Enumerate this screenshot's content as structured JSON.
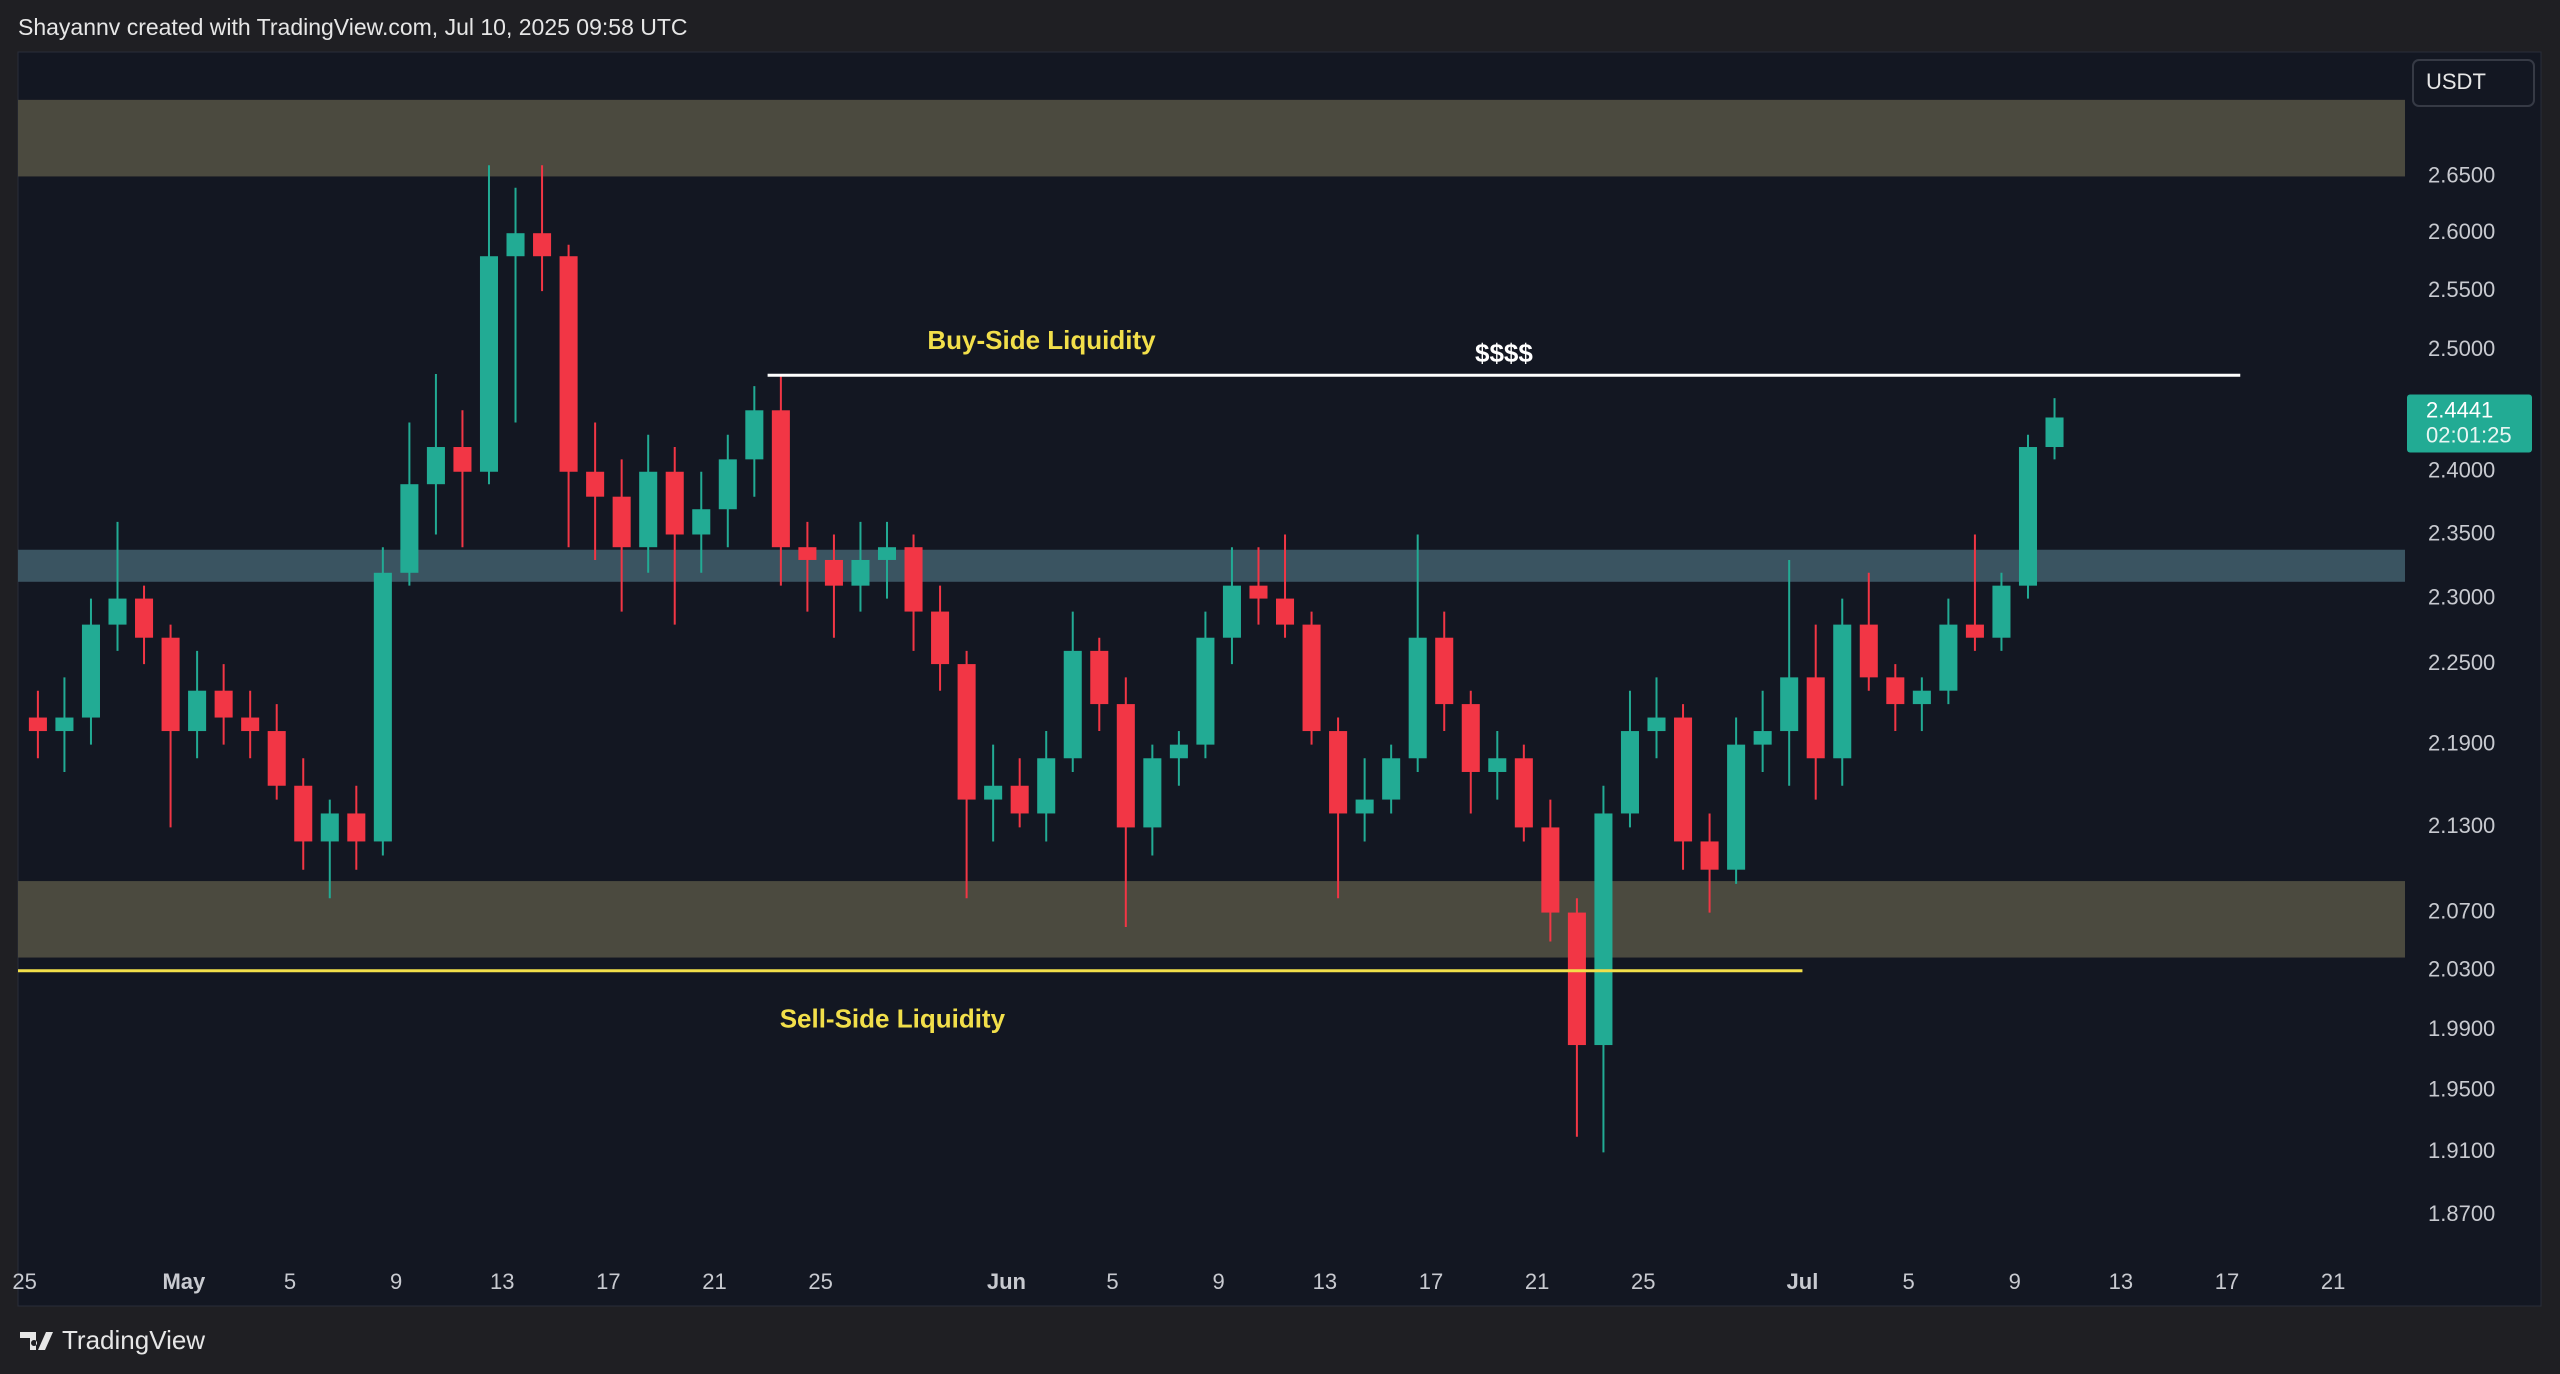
{
  "header": "Shayannv created with TradingView.com, Jul 10, 2025 09:58 UTC",
  "footer": "TradingView",
  "chart_data": {
    "type": "candlestick",
    "currency": "USDT",
    "log_scale": true,
    "grid": false,
    "up_color": "#22ab94",
    "down_color": "#f23645",
    "x": [
      "2025-04-25",
      "2025-04-26",
      "2025-04-27",
      "2025-04-28",
      "2025-04-29",
      "2025-04-30",
      "2025-05-01",
      "2025-05-02",
      "2025-05-03",
      "2025-05-04",
      "2025-05-05",
      "2025-05-06",
      "2025-05-07",
      "2025-05-08",
      "2025-05-09",
      "2025-05-10",
      "2025-05-11",
      "2025-05-12",
      "2025-05-13",
      "2025-05-14",
      "2025-05-15",
      "2025-05-16",
      "2025-05-17",
      "2025-05-18",
      "2025-05-19",
      "2025-05-20",
      "2025-05-21",
      "2025-05-22",
      "2025-05-23",
      "2025-05-24",
      "2025-05-25",
      "2025-05-26",
      "2025-05-27",
      "2025-05-28",
      "2025-05-29",
      "2025-05-30",
      "2025-05-31",
      "2025-06-01",
      "2025-06-02",
      "2025-06-03",
      "2025-06-04",
      "2025-06-05",
      "2025-06-06",
      "2025-06-07",
      "2025-06-08",
      "2025-06-09",
      "2025-06-10",
      "2025-06-11",
      "2025-06-12",
      "2025-06-13",
      "2025-06-14",
      "2025-06-15",
      "2025-06-16",
      "2025-06-17",
      "2025-06-18",
      "2025-06-19",
      "2025-06-20",
      "2025-06-21",
      "2025-06-22",
      "2025-06-23",
      "2025-06-24",
      "2025-06-25",
      "2025-06-26",
      "2025-06-27",
      "2025-06-28",
      "2025-06-29",
      "2025-06-30",
      "2025-07-01",
      "2025-07-02",
      "2025-07-03",
      "2025-07-04",
      "2025-07-05",
      "2025-07-06",
      "2025-07-07",
      "2025-07-08",
      "2025-07-09",
      "2025-07-10"
    ],
    "open": [
      2.21,
      2.2,
      2.21,
      2.28,
      2.3,
      2.27,
      2.2,
      2.23,
      2.21,
      2.2,
      2.16,
      2.12,
      2.14,
      2.12,
      2.32,
      2.39,
      2.42,
      2.4,
      2.58,
      2.6,
      2.58,
      2.4,
      2.38,
      2.34,
      2.4,
      2.35,
      2.37,
      2.41,
      2.45,
      2.34,
      2.33,
      2.31,
      2.33,
      2.34,
      2.29,
      2.25,
      2.15,
      2.16,
      2.14,
      2.18,
      2.26,
      2.22,
      2.13,
      2.18,
      2.19,
      2.27,
      2.31,
      2.3,
      2.28,
      2.2,
      2.14,
      2.15,
      2.18,
      2.27,
      2.22,
      2.17,
      2.18,
      2.13,
      2.07,
      1.98,
      2.14,
      2.2,
      2.21,
      2.12,
      2.1,
      2.19,
      2.2,
      2.24,
      2.18,
      2.28,
      2.24,
      2.22,
      2.23,
      2.28,
      2.27,
      2.31,
      2.42
    ],
    "high": [
      2.23,
      2.24,
      2.3,
      2.36,
      2.31,
      2.28,
      2.26,
      2.25,
      2.23,
      2.22,
      2.18,
      2.15,
      2.16,
      2.34,
      2.44,
      2.48,
      2.45,
      2.66,
      2.64,
      2.66,
      2.59,
      2.44,
      2.41,
      2.43,
      2.42,
      2.4,
      2.43,
      2.47,
      2.48,
      2.36,
      2.35,
      2.36,
      2.36,
      2.35,
      2.31,
      2.26,
      2.19,
      2.18,
      2.2,
      2.29,
      2.27,
      2.24,
      2.19,
      2.2,
      2.29,
      2.34,
      2.34,
      2.35,
      2.29,
      2.21,
      2.18,
      2.19,
      2.35,
      2.29,
      2.23,
      2.2,
      2.19,
      2.15,
      2.08,
      2.16,
      2.23,
      2.24,
      2.22,
      2.14,
      2.21,
      2.23,
      2.33,
      2.28,
      2.3,
      2.32,
      2.25,
      2.24,
      2.3,
      2.35,
      2.32,
      2.43,
      2.46
    ],
    "low": [
      2.18,
      2.17,
      2.19,
      2.26,
      2.25,
      2.13,
      2.18,
      2.19,
      2.18,
      2.15,
      2.1,
      2.08,
      2.1,
      2.11,
      2.31,
      2.35,
      2.34,
      2.39,
      2.44,
      2.55,
      2.34,
      2.33,
      2.29,
      2.32,
      2.28,
      2.32,
      2.34,
      2.38,
      2.31,
      2.29,
      2.27,
      2.29,
      2.3,
      2.26,
      2.23,
      2.08,
      2.12,
      2.13,
      2.12,
      2.17,
      2.2,
      2.06,
      2.11,
      2.16,
      2.18,
      2.25,
      2.28,
      2.27,
      2.19,
      2.08,
      2.12,
      2.14,
      2.17,
      2.2,
      2.14,
      2.15,
      2.12,
      2.05,
      1.92,
      1.91,
      2.13,
      2.18,
      2.1,
      2.07,
      2.09,
      2.17,
      2.16,
      2.15,
      2.16,
      2.23,
      2.2,
      2.2,
      2.22,
      2.26,
      2.26,
      2.3,
      2.41
    ],
    "close": [
      2.2,
      2.21,
      2.28,
      2.3,
      2.27,
      2.2,
      2.23,
      2.21,
      2.2,
      2.16,
      2.12,
      2.14,
      2.12,
      2.32,
      2.39,
      2.42,
      2.4,
      2.58,
      2.6,
      2.58,
      2.4,
      2.38,
      2.34,
      2.4,
      2.35,
      2.37,
      2.41,
      2.45,
      2.34,
      2.33,
      2.31,
      2.33,
      2.34,
      2.29,
      2.25,
      2.15,
      2.16,
      2.14,
      2.18,
      2.26,
      2.22,
      2.13,
      2.18,
      2.19,
      2.27,
      2.31,
      2.3,
      2.28,
      2.2,
      2.14,
      2.15,
      2.18,
      2.27,
      2.22,
      2.17,
      2.18,
      2.13,
      2.07,
      1.98,
      2.14,
      2.2,
      2.21,
      2.12,
      2.1,
      2.19,
      2.2,
      2.24,
      2.18,
      2.28,
      2.24,
      2.22,
      2.23,
      2.28,
      2.27,
      2.31,
      2.42,
      2.4441
    ],
    "last_price": 2.4441,
    "last_price_color": "#22ab94",
    "countdown": "02:01:25",
    "xlim": [
      "2025-04-24T18:00",
      "2025-07-23T17:00"
    ],
    "xticks": [
      {
        "value": "2025-04-25",
        "label": "25"
      },
      {
        "value": "2025-05-01",
        "label": "May"
      },
      {
        "value": "2025-05-05",
        "label": "5"
      },
      {
        "value": "2025-05-09",
        "label": "9"
      },
      {
        "value": "2025-05-13",
        "label": "13"
      },
      {
        "value": "2025-05-17",
        "label": "17"
      },
      {
        "value": "2025-05-21",
        "label": "21"
      },
      {
        "value": "2025-05-25",
        "label": "25"
      },
      {
        "value": "2025-06-01",
        "label": "Jun"
      },
      {
        "value": "2025-06-05",
        "label": "5"
      },
      {
        "value": "2025-06-09",
        "label": "9"
      },
      {
        "value": "2025-06-13",
        "label": "13"
      },
      {
        "value": "2025-06-17",
        "label": "17"
      },
      {
        "value": "2025-06-21",
        "label": "21"
      },
      {
        "value": "2025-06-25",
        "label": "25"
      },
      {
        "value": "2025-07-01",
        "label": "Jul"
      },
      {
        "value": "2025-07-05",
        "label": "5"
      },
      {
        "value": "2025-07-09",
        "label": "9"
      },
      {
        "value": "2025-07-13",
        "label": "13"
      },
      {
        "value": "2025-07-17",
        "label": "17"
      },
      {
        "value": "2025-07-21",
        "label": "21"
      }
    ],
    "ylim": [
      1.814,
      2.763
    ],
    "yticks": [
      {
        "value": 2.65,
        "label": "2.6500"
      },
      {
        "value": 2.6,
        "label": "2.6000"
      },
      {
        "value": 2.55,
        "label": "2.5500"
      },
      {
        "value": 2.5,
        "label": "2.5000"
      },
      {
        "value": 2.4,
        "label": "2.4000"
      },
      {
        "value": 2.35,
        "label": "2.3500"
      },
      {
        "value": 2.3,
        "label": "2.3000"
      },
      {
        "value": 2.25,
        "label": "2.2500"
      },
      {
        "value": 2.19,
        "label": "2.1900"
      },
      {
        "value": 2.13,
        "label": "2.1300"
      },
      {
        "value": 2.07,
        "label": "2.0700"
      },
      {
        "value": 2.03,
        "label": "2.0300"
      },
      {
        "value": 1.99,
        "label": "1.9900"
      },
      {
        "value": 1.95,
        "label": "1.9500"
      },
      {
        "value": 1.91,
        "label": "1.9100"
      },
      {
        "value": 1.87,
        "label": "1.8700"
      }
    ],
    "zones": [
      {
        "top": 2.719,
        "bottom": 2.65,
        "color": "#4b4a3f"
      },
      {
        "top": 2.338,
        "bottom": 2.313,
        "color": "#3a5461"
      },
      {
        "top": 2.092,
        "bottom": 2.039,
        "color": "#4b4a3f"
      }
    ],
    "levels": [
      {
        "label": "Buy-Side Liquidity",
        "note": "$$$$",
        "value": 2.479,
        "from": "2025-05-23",
        "to": "2025-07-17T12:00",
        "color": "#ffffff",
        "label_color": "#f2df4a"
      },
      {
        "label": "Sell-Side Liquidity",
        "value": 2.03,
        "from": "2025-04-24T18:00",
        "to": "2025-07-01",
        "color": "#f2df4a",
        "label_color": "#f2df4a"
      }
    ]
  }
}
